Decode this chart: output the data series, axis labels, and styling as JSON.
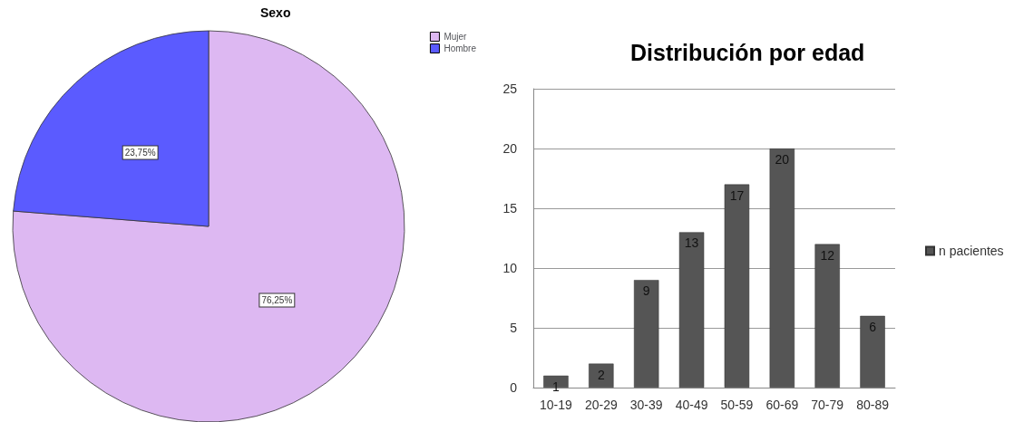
{
  "chart_data": [
    {
      "type": "pie",
      "title": "Sexo",
      "categories": [
        "Mujer",
        "Hombre"
      ],
      "values": [
        76.25,
        23.75
      ],
      "colors": [
        "#ddb8f2",
        "#5b5bff"
      ],
      "value_labels": [
        "76,25%",
        "23,75%"
      ],
      "legend": "top right"
    },
    {
      "type": "bar",
      "title": "Distribución por edad",
      "categories": [
        "10-19",
        "20-29",
        "30-39",
        "40-49",
        "50-59",
        "60-69",
        "70-79",
        "80-89"
      ],
      "series": [
        {
          "name": "n pacientes",
          "color": "#555555",
          "values": [
            1,
            2,
            9,
            13,
            17,
            20,
            12,
            6
          ]
        }
      ],
      "ylim": [
        0,
        25
      ],
      "yticks": [
        0,
        5,
        10,
        15,
        20,
        25
      ],
      "grid": "y",
      "data_labels": true,
      "legend": "right"
    }
  ]
}
